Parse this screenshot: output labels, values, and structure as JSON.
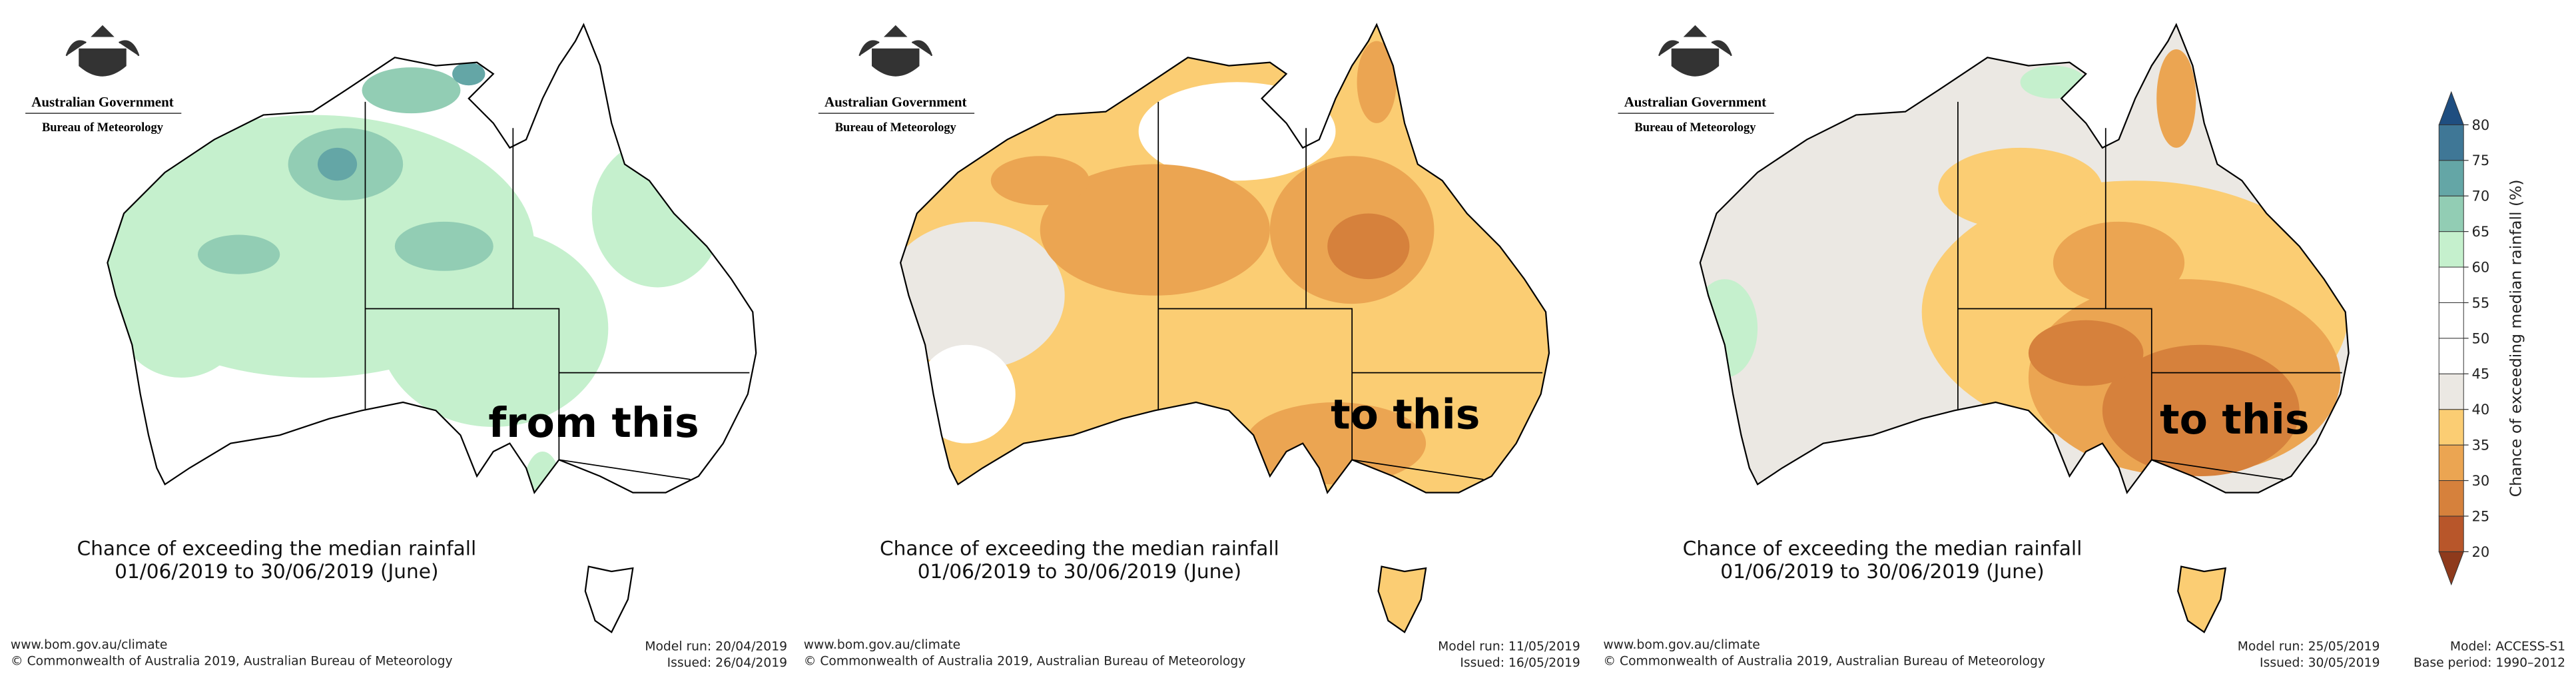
{
  "panels": [
    {
      "agency": "Australian Government",
      "bureau": "Bureau of Meteorology",
      "caption": "Chance of exceeding the median rainfall",
      "period": "01/06/2019 to 30/06/2019 (June)",
      "overlay": "from this",
      "url": "www.bom.gov.au/climate",
      "copyright": "© Commonwealth of Australia 2019, Australian Bureau of Meteorology",
      "model_run": "Model run: 20/04/2019",
      "issued": "Issued: 26/04/2019"
    },
    {
      "agency": "Australian Government",
      "bureau": "Bureau of Meteorology",
      "caption": "Chance of exceeding the median rainfall",
      "period": "01/06/2019 to 30/06/2019 (June)",
      "overlay": "to this",
      "url": "www.bom.gov.au/climate",
      "copyright": "© Commonwealth of Australia 2019, Australian Bureau of Meteorology",
      "model_run": "Model run: 11/05/2019",
      "issued": "Issued: 16/05/2019"
    },
    {
      "agency": "Australian Government",
      "bureau": "Bureau of Meteorology",
      "caption": "Chance of exceeding the median rainfall",
      "period": "01/06/2019 to 30/06/2019 (June)",
      "overlay": "to this",
      "url": "www.bom.gov.au/climate",
      "copyright": "© Commonwealth of Australia 2019, Australian Bureau of Meteorology",
      "model_run": "Model run: 25/05/2019",
      "issued": "Issued: 30/05/2019"
    }
  ],
  "colorbar": {
    "label": "Chance of exceeding median rainfall (%)",
    "lim": [
      20,
      80
    ],
    "ticks": [
      20,
      25,
      30,
      35,
      40,
      45,
      50,
      55,
      60,
      65,
      70,
      75,
      80
    ],
    "colors": [
      "#b8562a",
      "#d6813c",
      "#eba552",
      "#fbcd73",
      "#ebe8e3",
      "#ffffff",
      "#ffffff",
      "#ffffff",
      "#c5f0cd",
      "#92cdb4",
      "#64a6a6",
      "#3f7796"
    ],
    "extend_low": "#8e3a1c",
    "extend_high": "#1f4e80"
  },
  "footer": {
    "model": "Model: ACCESS-S1",
    "base_period": "Base period: 1990–2012"
  }
}
